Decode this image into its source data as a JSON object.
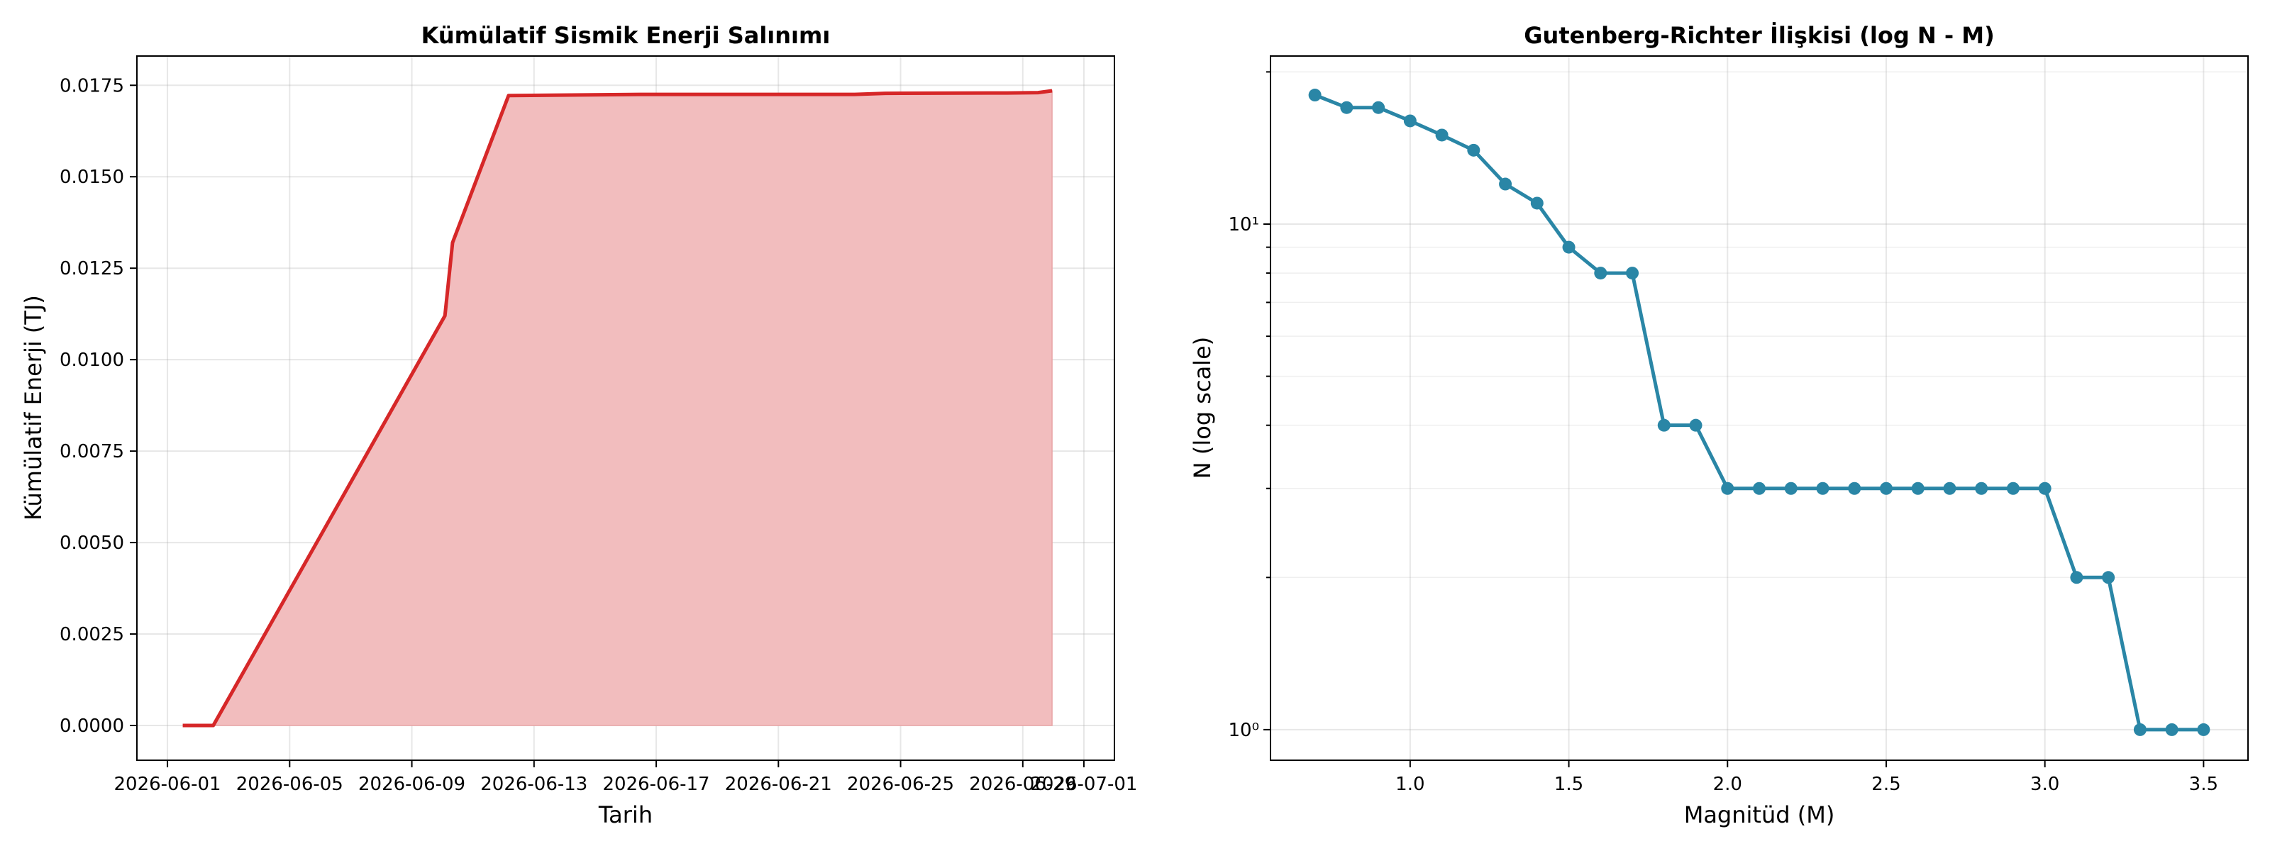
{
  "colors": {
    "energy_line": "#d62728",
    "energy_fill": "#f2bdbe",
    "gr_line": "#2a86a6"
  },
  "chart_data": [
    {
      "type": "area",
      "title": "Kümülatif Sismik Enerji Salınımı",
      "xlabel": "Tarih",
      "ylabel": "Kümülatif Enerji (TJ)",
      "x_axis_type": "date",
      "xlim": [
        "2026-05-31",
        "2026-07-02"
      ],
      "ylim": [
        -0.00095,
        0.0183
      ],
      "x_ticks": [
        "2026-06-01",
        "2026-06-05",
        "2026-06-09",
        "2026-06-13",
        "2026-06-17",
        "2026-06-21",
        "2026-06-25",
        "2026-06-29",
        "2026-07-01"
      ],
      "y_ticks": [
        "0.0000",
        "0.0025",
        "0.0050",
        "0.0075",
        "0.0100",
        "0.0125",
        "0.0150",
        "0.0175"
      ],
      "grid": true,
      "series": [
        {
          "x": [
            "2026-06-01 12:00",
            "2026-06-02 12:00",
            "2026-06-10 02:00",
            "2026-06-10 08:00",
            "2026-06-12 04:00",
            "2026-06-16 12:00",
            "2026-06-23 12:00",
            "2026-06-24 12:00",
            "2026-06-28 12:00",
            "2026-06-29 12:00",
            "2026-06-29 23:00"
          ],
          "y": [
            0.0,
            0.0,
            0.0112,
            0.0132,
            0.01722,
            0.01725,
            0.01725,
            0.01728,
            0.01729,
            0.0173,
            0.01735
          ]
        }
      ]
    },
    {
      "type": "line",
      "title": "Gutenberg-Richter İlişkisi (log N - M)",
      "xlabel": "Magnitüd (M)",
      "ylabel": "N (log scale)",
      "y_scale": "log",
      "xlim": [
        0.56,
        3.64
      ],
      "ylim": [
        0.87,
        21.5
      ],
      "x_ticks": [
        "1.0",
        "1.5",
        "2.0",
        "2.5",
        "3.0",
        "3.5"
      ],
      "y_tick_labels": [
        "10⁰",
        "10¹"
      ],
      "grid": true,
      "series": [
        {
          "x": [
            0.7,
            0.8,
            0.9,
            1.0,
            1.1,
            1.2,
            1.3,
            1.4,
            1.5,
            1.6,
            1.7,
            1.8,
            1.9,
            2.0,
            2.1,
            2.2,
            2.3,
            2.4,
            2.5,
            2.6,
            2.7,
            2.8,
            2.9,
            3.0,
            3.1,
            3.2,
            3.3,
            3.4,
            3.5
          ],
          "y": [
            18,
            17,
            17,
            16,
            15,
            14,
            12,
            11,
            9,
            8,
            8,
            4,
            4,
            3,
            3,
            3,
            3,
            3,
            3,
            3,
            3,
            3,
            3,
            3,
            2,
            2,
            1,
            1,
            1
          ]
        }
      ]
    }
  ]
}
